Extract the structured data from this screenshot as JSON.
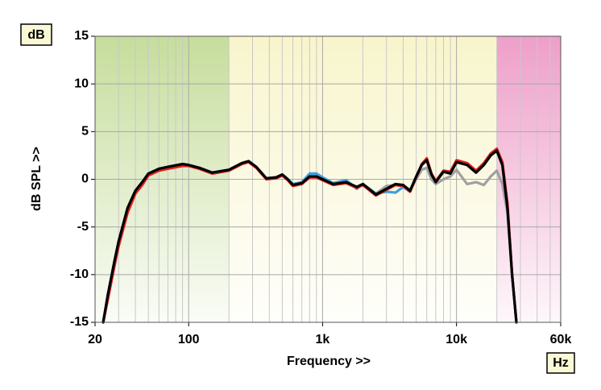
{
  "chart_data": {
    "type": "line",
    "unit_y": "dB",
    "unit_x": "Hz",
    "ylabel": "dB SPL >>",
    "xlabel": "Frequency >>",
    "log_x": true,
    "grid": true,
    "xlim": [
      20,
      60000
    ],
    "ylim": [
      -15,
      15
    ],
    "xticks": [
      20,
      100,
      {
        "value": 1000,
        "label": "1k"
      },
      {
        "value": 10000,
        "label": "10k"
      },
      {
        "value": 60000,
        "label": "60k"
      }
    ],
    "x_minor_grid": [
      30,
      40,
      50,
      60,
      70,
      80,
      90,
      200,
      300,
      400,
      500,
      600,
      700,
      800,
      900,
      2000,
      3000,
      4000,
      5000,
      6000,
      7000,
      8000,
      9000,
      20000,
      30000,
      40000,
      50000
    ],
    "yticks": [
      15,
      10,
      5,
      0,
      -5,
      -10,
      -15
    ],
    "regions": [
      {
        "xlim": [
          20,
          200
        ],
        "color": "#c6dd9c"
      },
      {
        "xlim": [
          200,
          20000
        ],
        "color": "#f8f5cc"
      },
      {
        "xlim": [
          20000,
          60000
        ],
        "color": "#ee9fc9"
      }
    ],
    "x": [
      23,
      25,
      28,
      30,
      35,
      40,
      45,
      50,
      60,
      70,
      90,
      100,
      120,
      150,
      200,
      250,
      280,
      320,
      380,
      450,
      500,
      550,
      600,
      700,
      800,
      900,
      1000,
      1200,
      1500,
      1800,
      2000,
      2500,
      3000,
      3500,
      4000,
      4500,
      5000,
      5500,
      6000,
      6500,
      7000,
      8000,
      9000,
      10000,
      12000,
      14000,
      16000,
      18000,
      20000,
      22000,
      24000,
      26000,
      28000
    ],
    "series": [
      {
        "color": "#a0a0a0",
        "values": [
          -15,
          -12,
          -8.5,
          -6.5,
          -3,
          -1.2,
          -0.3,
          0.6,
          1.1,
          1.3,
          1.6,
          1.5,
          1.2,
          0.7,
          1.0,
          1.7,
          1.9,
          1.3,
          0.1,
          0.2,
          0.5,
          0.0,
          -0.6,
          -0.4,
          0.3,
          0.3,
          0.0,
          -0.5,
          -0.3,
          -0.8,
          -0.5,
          -1.5,
          -0.7,
          -0.6,
          -0.7,
          -1.1,
          0.0,
          1.0,
          1.2,
          0.0,
          -0.5,
          0.0,
          0.3,
          1.0,
          -0.5,
          -0.3,
          -0.6,
          0.3,
          0.9,
          -0.5,
          -3.5,
          -10,
          -15
        ]
      },
      {
        "color": "#3aa0dc",
        "values": [
          -15,
          -12,
          -8.5,
          -6.5,
          -3,
          -1.2,
          -0.3,
          0.6,
          1.1,
          1.3,
          1.6,
          1.5,
          1.2,
          0.7,
          1.0,
          1.7,
          1.9,
          1.3,
          0.1,
          0.2,
          0.5,
          0.0,
          -0.5,
          -0.3,
          0.6,
          0.6,
          0.2,
          -0.4,
          -0.1,
          -1.0,
          -0.5,
          -1.5,
          -1.3,
          -1.4,
          -0.8,
          -1.3,
          0.2,
          1.5,
          2.0,
          0.6,
          -0.2,
          0.9,
          0.7,
          1.8,
          1.5,
          0.8,
          1.5,
          2.5,
          3.0,
          1.5,
          -3.0,
          -10,
          -15
        ]
      },
      {
        "color": "#e0201c",
        "values": [
          -15,
          -12.5,
          -9,
          -7,
          -3.5,
          -1.5,
          -0.6,
          0.4,
          0.9,
          1.1,
          1.4,
          1.4,
          1.1,
          0.6,
          0.9,
          1.6,
          1.8,
          1.2,
          0.0,
          0.1,
          0.4,
          -0.1,
          -0.7,
          -0.5,
          0.2,
          0.2,
          -0.1,
          -0.6,
          -0.4,
          -0.9,
          -0.6,
          -1.7,
          -1.1,
          -0.6,
          -0.7,
          -1.3,
          0.2,
          1.6,
          2.2,
          0.6,
          -0.2,
          0.9,
          0.8,
          2.0,
          1.7,
          0.9,
          1.7,
          2.7,
          3.2,
          1.8,
          -2.5,
          -10,
          -15
        ]
      },
      {
        "color": "#000000",
        "values": [
          -15,
          -12,
          -8.5,
          -6.5,
          -3,
          -1.2,
          -0.3,
          0.6,
          1.1,
          1.3,
          1.6,
          1.5,
          1.2,
          0.7,
          1.0,
          1.7,
          1.9,
          1.3,
          0.1,
          0.2,
          0.5,
          0.0,
          -0.6,
          -0.4,
          0.3,
          0.3,
          0.0,
          -0.5,
          -0.3,
          -0.8,
          -0.5,
          -1.6,
          -1.0,
          -0.5,
          -0.6,
          -1.2,
          0.3,
          1.5,
          2.0,
          0.5,
          -0.3,
          0.8,
          0.6,
          1.8,
          1.5,
          0.7,
          1.5,
          2.5,
          3.0,
          1.5,
          -3.0,
          -10,
          -15
        ]
      }
    ]
  }
}
